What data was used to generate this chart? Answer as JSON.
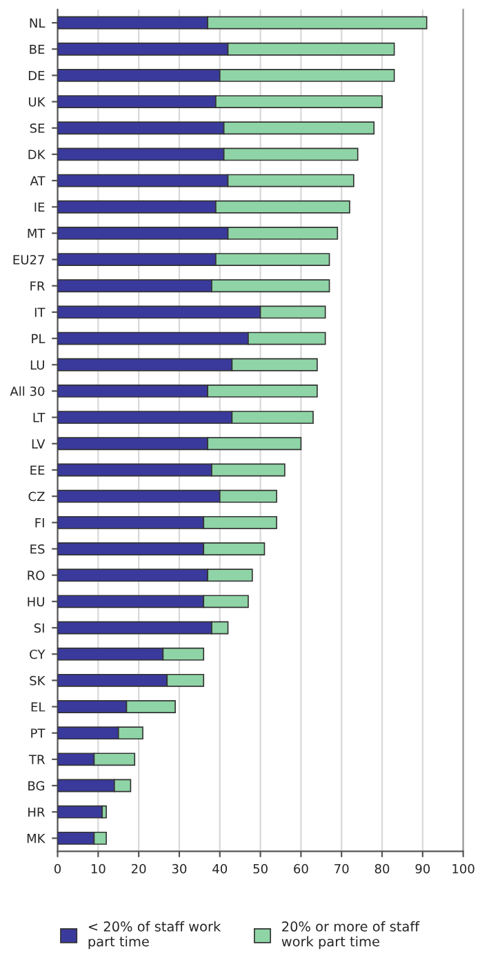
{
  "chart_data": {
    "type": "bar",
    "orientation": "horizontal",
    "stacked": true,
    "categories": [
      "NL",
      "BE",
      "DE",
      "UK",
      "SE",
      "DK",
      "AT",
      "IE",
      "MT",
      "EU27",
      "FR",
      "IT",
      "PL",
      "LU",
      "All 30",
      "LT",
      "LV",
      "EE",
      "CZ",
      "FI",
      "ES",
      "RO",
      "HU",
      "SI",
      "CY",
      "SK",
      "EL",
      "PT",
      "TR",
      "BG",
      "HR",
      "MK"
    ],
    "series": [
      {
        "name": "< 20% of staff work part time",
        "color": "#3a3a9c",
        "values": [
          37,
          42,
          40,
          39,
          41,
          41,
          42,
          39,
          42,
          39,
          38,
          50,
          47,
          43,
          37,
          43,
          37,
          38,
          40,
          36,
          36,
          37,
          36,
          38,
          26,
          27,
          17,
          15,
          9,
          14,
          11,
          9
        ]
      },
      {
        "name": "20% or more of staff work part time",
        "color": "#8fd4a6",
        "values": [
          54,
          41,
          43,
          41,
          37,
          33,
          31,
          33,
          27,
          28,
          29,
          16,
          19,
          21,
          27,
          20,
          23,
          18,
          14,
          18,
          15,
          11,
          11,
          4,
          10,
          9,
          12,
          6,
          10,
          4,
          1,
          3
        ]
      }
    ],
    "xlim": [
      0,
      100
    ],
    "xticks": [
      0,
      10,
      20,
      30,
      40,
      50,
      60,
      70,
      80,
      90,
      100
    ],
    "grid": "x",
    "legend": "bottom"
  }
}
